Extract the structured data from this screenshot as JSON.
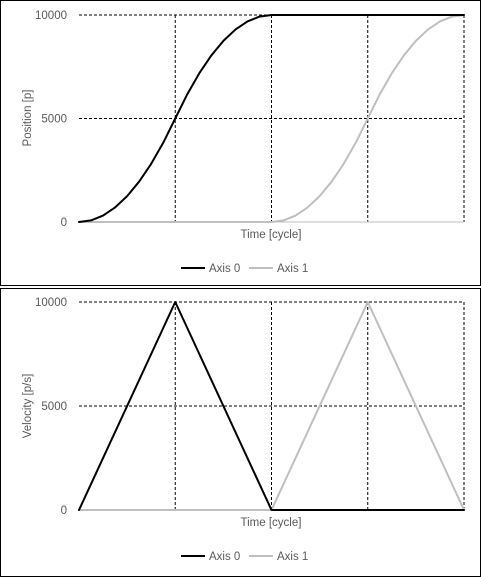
{
  "colors": {
    "axis0": "#000000",
    "axis1": "#bfbfbf",
    "grid": "#000000",
    "text": "#595959",
    "border": "#000000"
  },
  "chart_data": [
    {
      "type": "line",
      "ylabel": "Position [p]",
      "xlabel": "Time [cycle]",
      "ylim": [
        0,
        10000
      ],
      "yticks": [
        "0",
        "5000",
        "10000"
      ],
      "grid": "dashed",
      "legend": "bottom",
      "x": [
        0,
        0.125,
        0.25,
        0.375,
        0.5,
        0.625,
        0.75,
        0.875,
        1,
        1.125,
        1.25,
        1.375,
        1.5,
        1.625,
        1.75,
        1.875,
        2,
        2.125,
        2.25,
        2.375,
        2.5,
        2.625,
        2.75,
        2.875,
        3,
        3.125,
        3.25,
        3.375,
        3.5,
        3.625,
        3.75,
        3.875,
        4
      ],
      "series": [
        {
          "name": "Axis 0",
          "color": "#000000",
          "values": [
            0,
            78,
            313,
            703,
            1250,
            1953,
            2813,
            3828,
            5000,
            6172,
            7188,
            8047,
            8750,
            9297,
            9688,
            9922,
            10000,
            10000,
            10000,
            10000,
            10000,
            10000,
            10000,
            10000,
            10000,
            10000,
            10000,
            10000,
            10000,
            10000,
            10000,
            10000,
            10000
          ]
        },
        {
          "name": "Axis 1",
          "color": "#bfbfbf",
          "values": [
            0,
            0,
            0,
            0,
            0,
            0,
            0,
            0,
            0,
            0,
            0,
            0,
            0,
            0,
            0,
            0,
            0,
            78,
            313,
            703,
            1250,
            1953,
            2813,
            3828,
            5000,
            6172,
            7188,
            8047,
            8750,
            9297,
            9688,
            9922,
            10000
          ]
        }
      ]
    },
    {
      "type": "line",
      "ylabel": "Velocity [p/s]",
      "xlabel": "Time [cycle]",
      "ylim": [
        0,
        10000
      ],
      "yticks": [
        "0",
        "5000",
        "10000"
      ],
      "grid": "dashed",
      "legend": "bottom",
      "x": [
        0,
        1,
        2,
        3,
        4
      ],
      "series": [
        {
          "name": "Axis 0",
          "color": "#000000",
          "values": [
            0,
            10000,
            0,
            0,
            0
          ]
        },
        {
          "name": "Axis 1",
          "color": "#bfbfbf",
          "values": [
            0,
            0,
            0,
            10000,
            0
          ]
        }
      ]
    }
  ]
}
